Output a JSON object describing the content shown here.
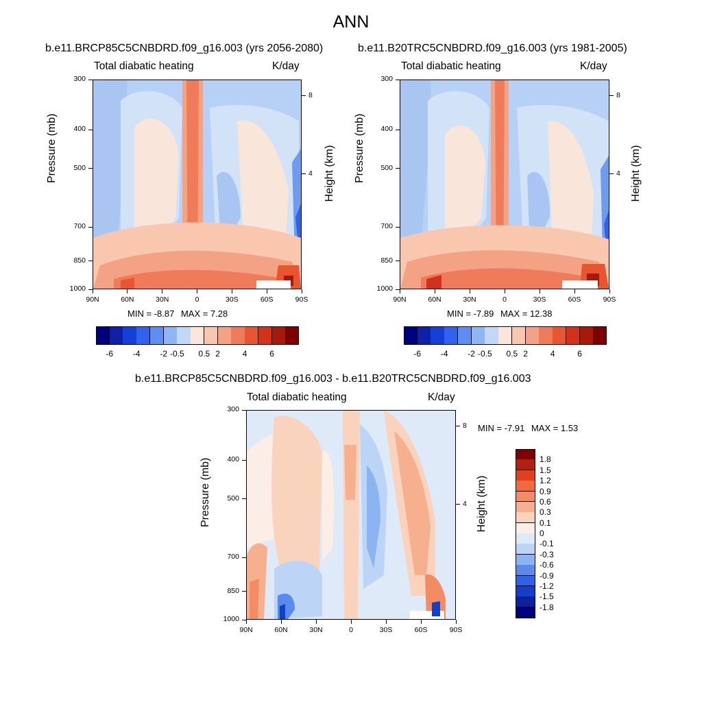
{
  "figure_title": "ANN",
  "chart_data": [
    {
      "type": "heatmap",
      "title": "b.e11.BRCP85C5CNBDRD.f09_g16.003 (yrs 2056-2080)",
      "subtitle_left": "Total diabatic heating",
      "subtitle_right": "K/day",
      "ylabel": "Pressure (mb)",
      "ylabel_right": "Height (km)",
      "xticks": [
        "90N",
        "60N",
        "30N",
        "0",
        "30S",
        "60S",
        "90S"
      ],
      "yticks": [
        "300",
        "400",
        "500",
        "700",
        "850",
        "1000"
      ],
      "yticks_right": [
        "8",
        "4"
      ],
      "xlim": [
        90,
        -90
      ],
      "ylim": [
        1000,
        300
      ],
      "min_label": "MIN =",
      "min_value": "-8.87",
      "max_label": "MAX =",
      "max_value": "7.28",
      "colorbar_labels": [
        "-6",
        "-4",
        "-2",
        "-0.5",
        "0.5",
        "2",
        "4",
        "6"
      ],
      "colorbar_colors": [
        "#00007f",
        "#0d21a6",
        "#1440d8",
        "#2f63ee",
        "#5c8ff2",
        "#8fb5f5",
        "#c2d8f8",
        "#fbe6d8",
        "#f8c7ad",
        "#f3a283",
        "#ef7b5a",
        "#e9552f",
        "#d3311a",
        "#a51a0c",
        "#7f0000"
      ]
    },
    {
      "type": "heatmap",
      "title": "b.e11.B20TRC5CNBDRD.f09_g16.003 (yrs 1981-2005)",
      "subtitle_left": "Total diabatic heating",
      "subtitle_right": "K/day",
      "ylabel": "Pressure (mb)",
      "ylabel_right": "Height (km)",
      "xticks": [
        "90N",
        "60N",
        "30N",
        "0",
        "30S",
        "60S",
        "90S"
      ],
      "yticks": [
        "300",
        "400",
        "500",
        "700",
        "850",
        "1000"
      ],
      "yticks_right": [
        "8",
        "4"
      ],
      "xlim": [
        90,
        -90
      ],
      "ylim": [
        1000,
        300
      ],
      "min_label": "MIN =",
      "min_value": "-7.89",
      "max_label": "MAX =",
      "max_value": "12.38",
      "colorbar_labels": [
        "-6",
        "-4",
        "-2",
        "-0.5",
        "0.5",
        "2",
        "4",
        "6"
      ],
      "colorbar_colors": [
        "#00007f",
        "#0d21a6",
        "#1440d8",
        "#2f63ee",
        "#5c8ff2",
        "#8fb5f5",
        "#c2d8f8",
        "#fbe6d8",
        "#f8c7ad",
        "#f3a283",
        "#ef7b5a",
        "#e9552f",
        "#d3311a",
        "#a51a0c",
        "#7f0000"
      ]
    },
    {
      "type": "heatmap",
      "title": "b.e11.BRCP85C5CNBDRD.f09_g16.003 - b.e11.B20TRC5CNBDRD.f09_g16.003",
      "subtitle_left": "Total diabatic heating",
      "subtitle_right": "K/day",
      "ylabel": "Pressure (mb)",
      "ylabel_right": "Height (km)",
      "xticks": [
        "90N",
        "60N",
        "30N",
        "0",
        "30S",
        "60S",
        "90S"
      ],
      "yticks": [
        "300",
        "400",
        "500",
        "700",
        "850",
        "1000"
      ],
      "yticks_right": [
        "8",
        "4"
      ],
      "xlim": [
        90,
        -90
      ],
      "ylim": [
        1000,
        300
      ],
      "min_label": "MIN =",
      "min_value": "-7.91",
      "max_label": "MAX =",
      "max_value": "1.53",
      "colorbar_labels": [
        "1.8",
        "1.5",
        "1.2",
        "0.9",
        "0.6",
        "0.3",
        "0.1",
        "0",
        "-0.1",
        "-0.3",
        "-0.6",
        "-0.9",
        "-1.2",
        "-1.5",
        "-1.8"
      ],
      "colorbar_colors": [
        "#7f0000",
        "#b3200f",
        "#e0401f",
        "#ef6a3f",
        "#f38c62",
        "#f6b08e",
        "#f9d3bb",
        "#fbeee6",
        "#dfeaf9",
        "#bcd4f6",
        "#8cb3f2",
        "#5a8aee",
        "#2f62e6",
        "#143fc7",
        "#0a229d",
        "#00007f"
      ]
    }
  ]
}
